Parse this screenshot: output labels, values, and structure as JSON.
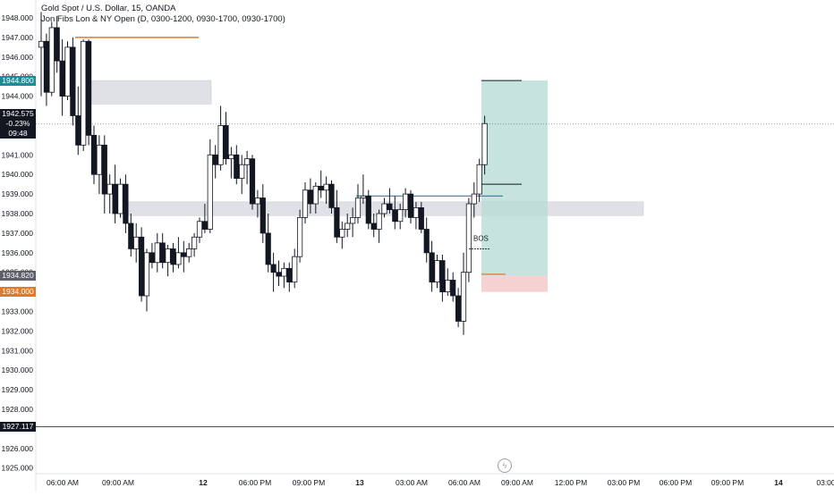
{
  "legend": {
    "symbol": "Gold Spot / U.S. Dollar, 15, OANDA",
    "indicator": "Jon Fibs Lon & NY Open (D, 0300-1200, 0930-1700, 0930-1700)"
  },
  "colors": {
    "up_candle": "#ffffff",
    "down_candle": "#131722",
    "grid_zone": "#d1d4dc",
    "target_zone": "#b8dcd4",
    "stop_zone": "#f4cccc",
    "teal": "#1e8c96",
    "orange": "#e07a2b"
  },
  "price_axis": {
    "ticks": [
      "1948.000",
      "1947.000",
      "1946.000",
      "1945.000",
      "1944.000",
      "1943.000",
      "1942.000",
      "1941.000",
      "1940.000",
      "1939.000",
      "1938.000",
      "1937.000",
      "1936.000",
      "1935.000",
      "1934.000",
      "1933.000",
      "1932.000",
      "1931.000",
      "1930.000",
      "1929.000",
      "1928.000",
      "1927.000",
      "1926.000",
      "1925.000"
    ]
  },
  "time_axis": {
    "labels": [
      "06:00 AM",
      "09:00 AM",
      "12",
      "06:00 PM",
      "09:00 PM",
      "13",
      "03:00 AM",
      "06:00 AM",
      "09:00 AM",
      "12:00 PM",
      "03:00 PM",
      "06:00 PM",
      "09:00 PM",
      "14",
      "03:00"
    ]
  },
  "price_badges": [
    {
      "value": "1944.800",
      "color": "#1e8c96",
      "lines": [
        "1944.800"
      ]
    },
    {
      "value": "1942.575",
      "color": "#131722",
      "lines": [
        "1942.575",
        "-0.23%",
        "09:48"
      ]
    },
    {
      "value": "1934.820",
      "color": "#5d606b",
      "lines": [
        "1934.820"
      ]
    },
    {
      "value": "1934.000",
      "color": "#e07a2b",
      "lines": [
        "1934.000"
      ]
    },
    {
      "value": "1927.117",
      "color": "#131722",
      "lines": [
        "1927.117"
      ]
    }
  ],
  "annotation": {
    "text": "BOS"
  },
  "current_price": 1942.575,
  "crosshair_price": 1927.117,
  "chart_data": {
    "type": "candlestick",
    "title": "Gold Spot / U.S. Dollar, 15, OANDA",
    "ylim": [
      1925,
      1948.5
    ],
    "candles_ohlc": [
      [
        1946.5,
        1948.3,
        1944.0,
        1946.8
      ],
      [
        1946.8,
        1947.2,
        1943.5,
        1944.2
      ],
      [
        1944.2,
        1947.8,
        1944.0,
        1947.5
      ],
      [
        1947.5,
        1948.1,
        1945.2,
        1945.8
      ],
      [
        1945.8,
        1946.9,
        1943.0,
        1944.0
      ],
      [
        1944.0,
        1946.8,
        1943.8,
        1946.5
      ],
      [
        1946.5,
        1947.0,
        1942.5,
        1943.0
      ],
      [
        1943.0,
        1944.5,
        1941.0,
        1941.5
      ],
      [
        1941.5,
        1946.9,
        1941.2,
        1946.8
      ],
      [
        1946.8,
        1946.9,
        1941.5,
        1942.0
      ],
      [
        1942.0,
        1942.5,
        1939.5,
        1940.0
      ],
      [
        1940.0,
        1942.0,
        1939.0,
        1941.5
      ],
      [
        1941.5,
        1942.0,
        1938.0,
        1939.0
      ],
      [
        1939.0,
        1940.0,
        1938.0,
        1939.5
      ],
      [
        1939.5,
        1940.5,
        1937.5,
        1938.0
      ],
      [
        1938.0,
        1939.8,
        1937.8,
        1939.5
      ],
      [
        1939.5,
        1940.0,
        1937.0,
        1937.5
      ],
      [
        1937.5,
        1938.0,
        1935.8,
        1936.2
      ],
      [
        1936.2,
        1937.5,
        1935.5,
        1936.8
      ],
      [
        1936.8,
        1937.3,
        1933.5,
        1933.8
      ],
      [
        1933.8,
        1936.2,
        1933.0,
        1936.0
      ],
      [
        1936.0,
        1936.5,
        1935.2,
        1935.5
      ],
      [
        1935.5,
        1937.0,
        1935.0,
        1936.5
      ],
      [
        1936.5,
        1937.0,
        1935.2,
        1935.5
      ],
      [
        1935.5,
        1936.4,
        1934.8,
        1936.2
      ],
      [
        1936.2,
        1936.5,
        1935.0,
        1935.4
      ],
      [
        1935.4,
        1936.8,
        1935.2,
        1936.0
      ],
      [
        1936.0,
        1936.6,
        1935.0,
        1935.8
      ],
      [
        1935.8,
        1936.5,
        1935.5,
        1936.2
      ],
      [
        1936.2,
        1937.0,
        1935.8,
        1936.8
      ],
      [
        1936.8,
        1937.8,
        1936.5,
        1937.6
      ],
      [
        1937.6,
        1938.5,
        1937.0,
        1937.2
      ],
      [
        1937.2,
        1941.8,
        1937.0,
        1941.0
      ],
      [
        1941.0,
        1941.5,
        1939.8,
        1940.5
      ],
      [
        1940.5,
        1943.5,
        1940.2,
        1942.5
      ],
      [
        1942.5,
        1943.2,
        1940.5,
        1940.8
      ],
      [
        1940.8,
        1941.4,
        1939.8,
        1941.0
      ],
      [
        1941.0,
        1941.5,
        1939.5,
        1939.8
      ],
      [
        1939.8,
        1941.0,
        1939.0,
        1940.5
      ],
      [
        1940.5,
        1941.2,
        1939.5,
        1940.8
      ],
      [
        1940.8,
        1941.0,
        1938.2,
        1938.5
      ],
      [
        1938.5,
        1939.2,
        1937.8,
        1938.8
      ],
      [
        1938.8,
        1939.5,
        1936.5,
        1937.0
      ],
      [
        1937.0,
        1938.0,
        1935.0,
        1935.4
      ],
      [
        1935.4,
        1936.0,
        1934.0,
        1935.0
      ],
      [
        1935.0,
        1935.6,
        1934.3,
        1934.8
      ],
      [
        1934.8,
        1935.5,
        1934.2,
        1935.2
      ],
      [
        1935.2,
        1935.5,
        1934.0,
        1934.5
      ],
      [
        1934.5,
        1936.2,
        1934.2,
        1935.8
      ],
      [
        1935.8,
        1938.2,
        1935.5,
        1937.8
      ],
      [
        1937.8,
        1939.6,
        1937.5,
        1939.2
      ],
      [
        1939.2,
        1939.8,
        1938.0,
        1938.5
      ],
      [
        1938.5,
        1939.6,
        1938.0,
        1939.4
      ],
      [
        1939.4,
        1940.2,
        1938.8,
        1939.2
      ],
      [
        1939.2,
        1939.9,
        1938.5,
        1939.5
      ],
      [
        1939.5,
        1939.7,
        1938.0,
        1938.3
      ],
      [
        1938.3,
        1939.2,
        1936.5,
        1936.8
      ],
      [
        1936.8,
        1937.6,
        1936.2,
        1937.2
      ],
      [
        1937.2,
        1938.0,
        1936.8,
        1937.5
      ],
      [
        1937.5,
        1938.3,
        1936.8,
        1937.8
      ],
      [
        1937.8,
        1939.5,
        1937.5,
        1938.8
      ],
      [
        1938.8,
        1940.0,
        1938.5,
        1938.9
      ],
      [
        1938.9,
        1939.2,
        1937.2,
        1937.5
      ],
      [
        1937.5,
        1938.0,
        1936.8,
        1937.2
      ],
      [
        1937.2,
        1938.2,
        1936.5,
        1938.0
      ],
      [
        1938.0,
        1938.8,
        1937.8,
        1938.5
      ],
      [
        1938.5,
        1939.3,
        1938.0,
        1938.2
      ],
      [
        1938.2,
        1938.9,
        1937.2,
        1937.6
      ],
      [
        1937.6,
        1938.5,
        1937.2,
        1938.2
      ],
      [
        1938.2,
        1939.3,
        1937.8,
        1939.0
      ],
      [
        1939.0,
        1939.2,
        1937.5,
        1937.8
      ],
      [
        1937.8,
        1938.6,
        1937.2,
        1938.3
      ],
      [
        1938.3,
        1938.6,
        1937.0,
        1937.2
      ],
      [
        1937.2,
        1937.8,
        1935.5,
        1936.0
      ],
      [
        1936.0,
        1936.6,
        1934.0,
        1934.5
      ],
      [
        1934.5,
        1935.9,
        1934.2,
        1935.6
      ],
      [
        1935.6,
        1935.9,
        1933.5,
        1934.0
      ],
      [
        1934.0,
        1935.2,
        1933.8,
        1934.6
      ],
      [
        1934.6,
        1935.0,
        1933.5,
        1933.8
      ],
      [
        1933.8,
        1934.2,
        1932.2,
        1932.5
      ],
      [
        1932.5,
        1936.0,
        1931.8,
        1935.0
      ],
      [
        1935.0,
        1938.8,
        1934.5,
        1938.5
      ],
      [
        1938.5,
        1939.6,
        1937.8,
        1939.0
      ],
      [
        1939.0,
        1940.8,
        1938.6,
        1940.5
      ],
      [
        1940.5,
        1943.0,
        1940.0,
        1942.6
      ]
    ]
  }
}
